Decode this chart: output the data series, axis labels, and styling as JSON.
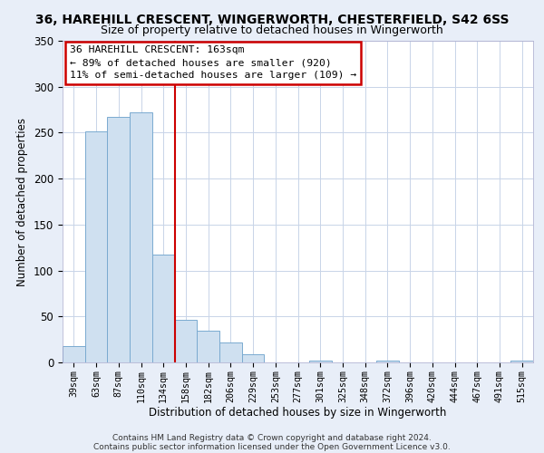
{
  "title": "36, HAREHILL CRESCENT, WINGERWORTH, CHESTERFIELD, S42 6SS",
  "subtitle": "Size of property relative to detached houses in Wingerworth",
  "xlabel": "Distribution of detached houses by size in Wingerworth",
  "ylabel": "Number of detached properties",
  "bar_color": "#cfe0f0",
  "bar_edge_color": "#7aaad0",
  "categories": [
    "39sqm",
    "63sqm",
    "87sqm",
    "110sqm",
    "134sqm",
    "158sqm",
    "182sqm",
    "206sqm",
    "229sqm",
    "253sqm",
    "277sqm",
    "301sqm",
    "325sqm",
    "348sqm",
    "372sqm",
    "396sqm",
    "420sqm",
    "444sqm",
    "467sqm",
    "491sqm",
    "515sqm"
  ],
  "values": [
    18,
    251,
    267,
    272,
    117,
    46,
    35,
    22,
    9,
    0,
    0,
    2,
    0,
    0,
    2,
    0,
    0,
    0,
    0,
    0,
    2
  ],
  "ylim": [
    0,
    350
  ],
  "yticks": [
    0,
    50,
    100,
    150,
    200,
    250,
    300,
    350
  ],
  "property_line_x": 4.5,
  "property_line_color": "#cc0000",
  "annotation_text": "36 HAREHILL CRESCENT: 163sqm\n← 89% of detached houses are smaller (920)\n11% of semi-detached houses are larger (109) →",
  "annotation_box_color": "#ffffff",
  "annotation_box_edge_color": "#cc0000",
  "footer_line1": "Contains HM Land Registry data © Crown copyright and database right 2024.",
  "footer_line2": "Contains public sector information licensed under the Open Government Licence v3.0.",
  "background_color": "#e8eef8",
  "plot_background_color": "#ffffff",
  "grid_color": "#c8d4e8"
}
